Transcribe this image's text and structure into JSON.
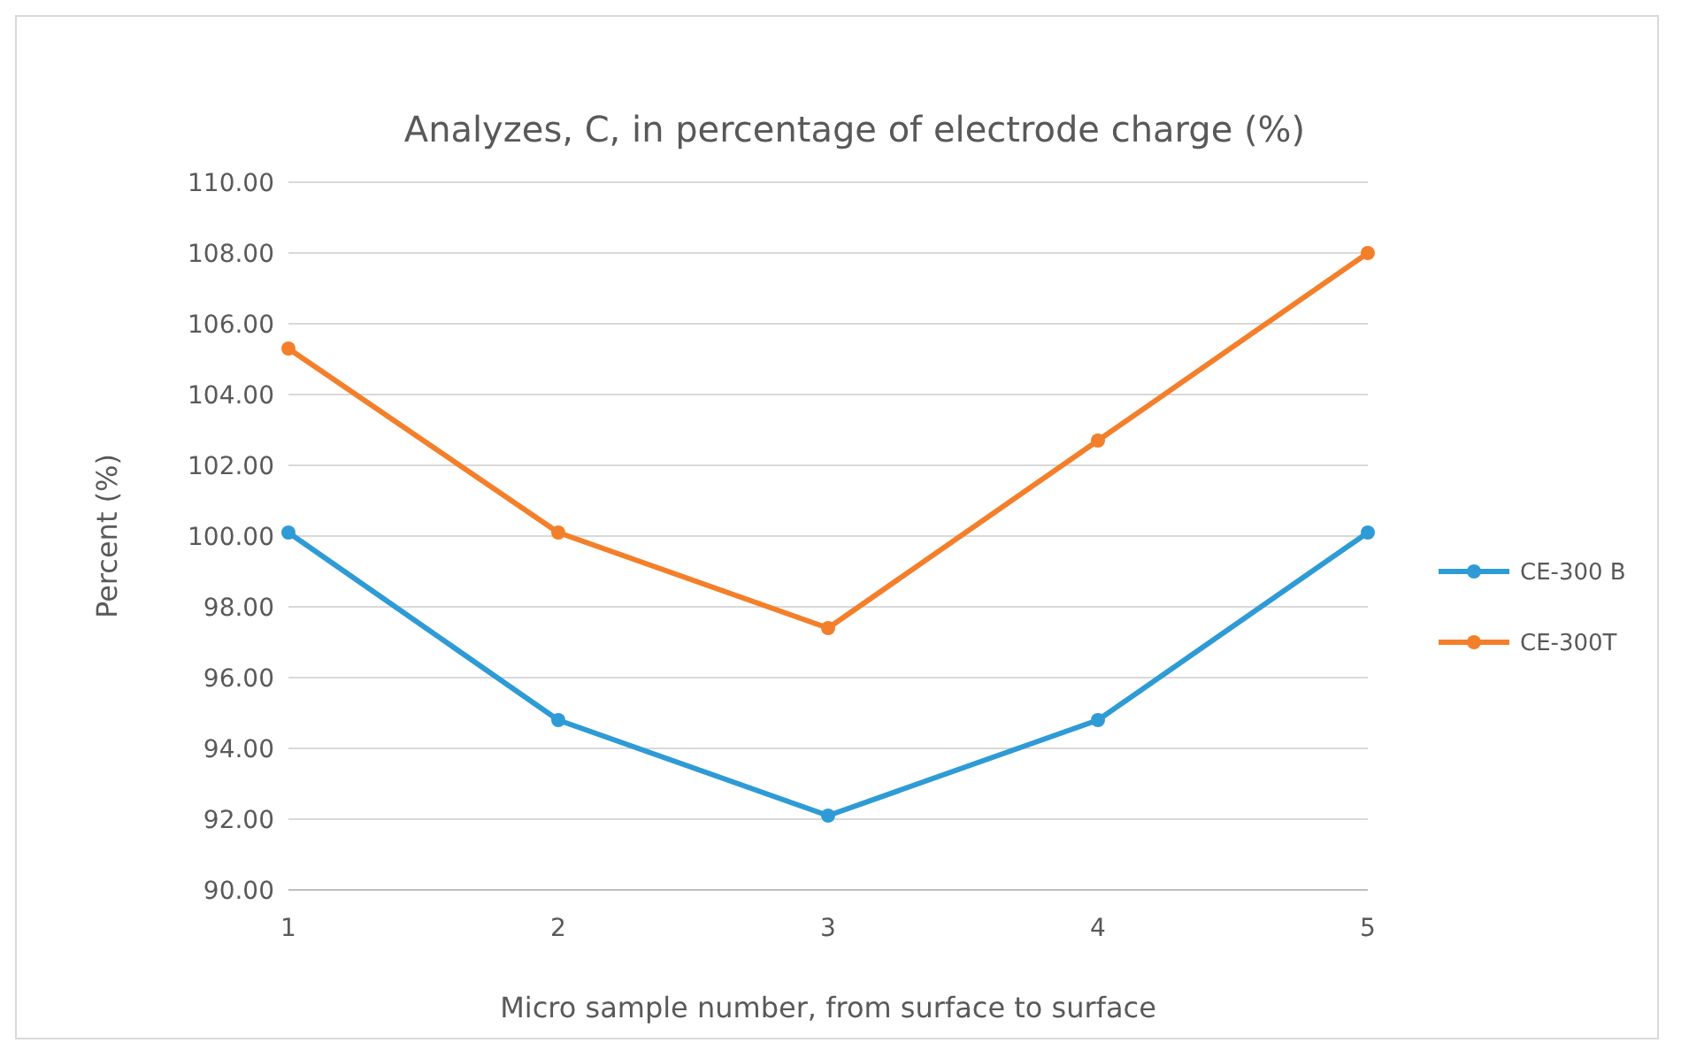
{
  "chart_data": {
    "type": "line",
    "title": "Analyzes, C, in percentage of electrode charge (%)",
    "xlabel": "Micro sample number, from surface to surface",
    "ylabel": "Percent (%)",
    "x": [
      1,
      2,
      3,
      4,
      5
    ],
    "xlim": [
      1,
      5
    ],
    "xticks": [
      1,
      2,
      3,
      4,
      5
    ],
    "ylim": [
      90,
      110
    ],
    "yticks": [
      {
        "value": 90,
        "label": "90.00"
      },
      {
        "value": 92,
        "label": "92.00"
      },
      {
        "value": 94,
        "label": "94.00"
      },
      {
        "value": 96,
        "label": "96.00"
      },
      {
        "value": 98,
        "label": "98.00"
      },
      {
        "value": 100,
        "label": "100.00"
      },
      {
        "value": 102,
        "label": "102.00"
      },
      {
        "value": 104,
        "label": "104.00"
      },
      {
        "value": 106,
        "label": "106.00"
      },
      {
        "value": 108,
        "label": "108.00"
      },
      {
        "value": 110,
        "label": "110.00"
      }
    ],
    "grid": "y",
    "legend": "right",
    "marker": "circle",
    "line_style": "solid",
    "series": [
      {
        "name": "CE-300 B",
        "color": "#2e9bd6",
        "values": [
          100.1,
          94.8,
          92.1,
          94.8,
          100.1
        ]
      },
      {
        "name": "CE-300T",
        "color": "#f47f2a",
        "values": [
          105.3,
          100.1,
          97.4,
          102.7,
          108.0
        ]
      }
    ]
  }
}
